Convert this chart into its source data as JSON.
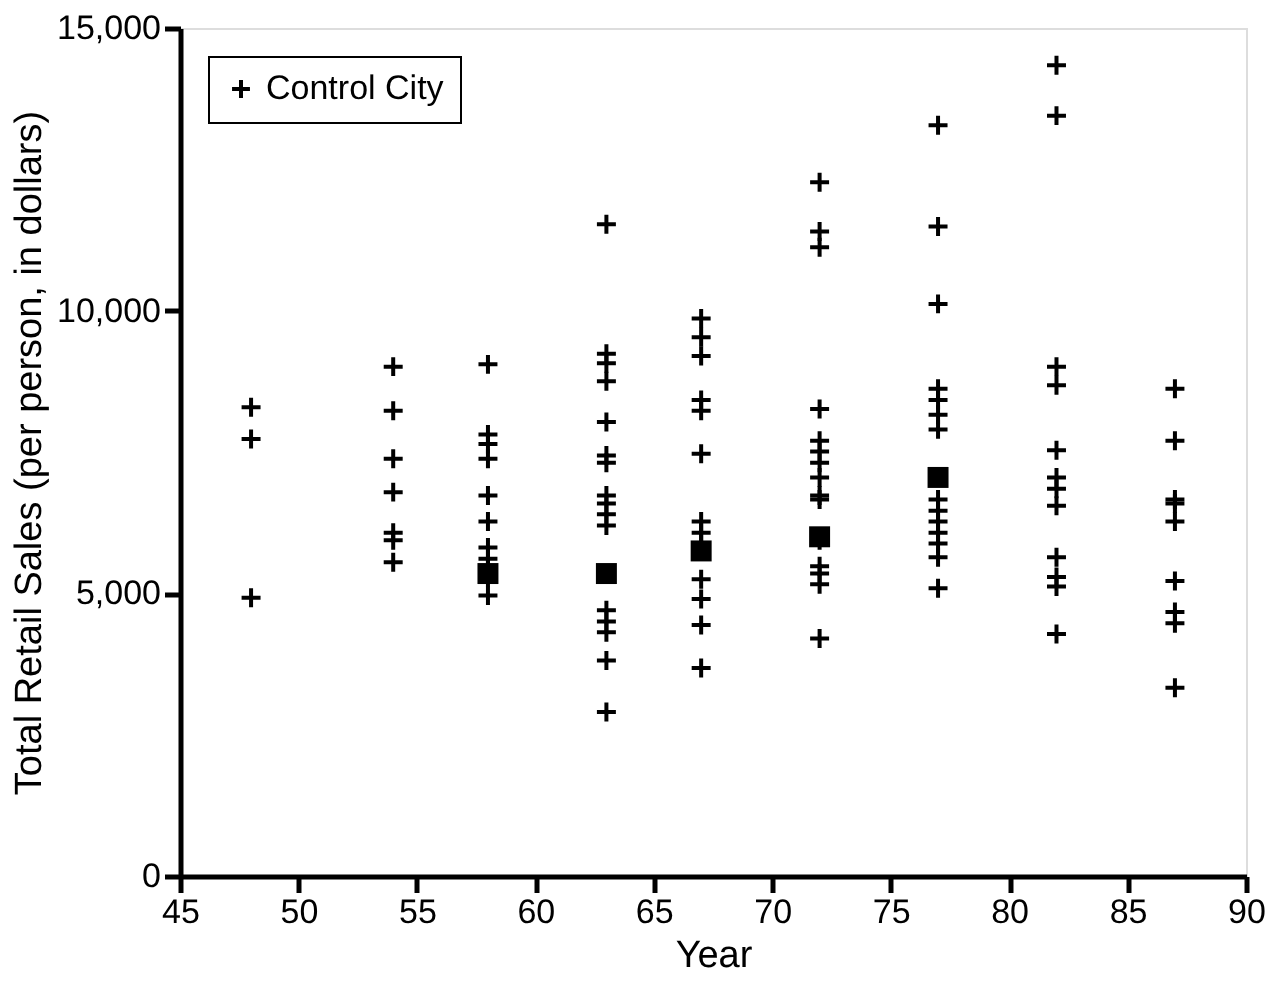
{
  "chart_data": {
    "type": "scatter",
    "xlabel": "Year",
    "ylabel": "Total Retail Sales (per person, in dollars)",
    "xlim": [
      45,
      90
    ],
    "xticks": [
      45,
      50,
      55,
      60,
      65,
      70,
      75,
      80,
      85,
      90
    ],
    "ylim": [
      0,
      15000
    ],
    "yticks": [
      0,
      {
        "value": 5000,
        "label": "5,000"
      },
      {
        "value": 10000,
        "label": "10,000"
      },
      {
        "value": 15000,
        "label": "15,000"
      }
    ],
    "grid": false,
    "legend": "top left",
    "series": [
      {
        "name": "Control City",
        "color": "#000000",
        "marker": "cross",
        "x": [
          48,
          48,
          48,
          54,
          54,
          54,
          54,
          54,
          54,
          54,
          58,
          58,
          58,
          58,
          58,
          58,
          58,
          58,
          58,
          58,
          58,
          63,
          63,
          63,
          63,
          63,
          63,
          63,
          63,
          63,
          63,
          63,
          63,
          63,
          63,
          63,
          63,
          67,
          67,
          67,
          67,
          67,
          67,
          67,
          67,
          67,
          67,
          67,
          67,
          67,
          72,
          72,
          72,
          72,
          72,
          72,
          72,
          72,
          72,
          72,
          72,
          72,
          72,
          72,
          72,
          77,
          77,
          77,
          77,
          77,
          77,
          77,
          77,
          77,
          77,
          77,
          77,
          77,
          77,
          82,
          82,
          82,
          82,
          82,
          82,
          82,
          82,
          82,
          82,
          82,
          82,
          87,
          87,
          87,
          87,
          87,
          87,
          87,
          87,
          87
        ],
        "values": [
          8290,
          7730,
          4920,
          9010,
          8230,
          7380,
          6790,
          6070,
          5940,
          5550,
          9050,
          7810,
          7640,
          7380,
          6730,
          6270,
          5810,
          5610,
          5420,
          5290,
          4960,
          11530,
          9240,
          9070,
          8750,
          8030,
          7440,
          7310,
          6730,
          6590,
          6400,
          6200,
          4700,
          4500,
          4310,
          3810,
          2900,
          9860,
          9530,
          9200,
          8420,
          8230,
          7470,
          6270,
          6070,
          5880,
          5250,
          4900,
          4440,
          3680,
          12270,
          11400,
          11120,
          8260,
          7700,
          7510,
          7310,
          7050,
          6730,
          6660,
          5940,
          5480,
          5350,
          5160,
          4200,
          13280,
          11490,
          10120,
          8620,
          8420,
          8160,
          7900,
          6660,
          6460,
          6270,
          6070,
          5880,
          5640,
          5090,
          14340,
          13450,
          9010,
          8680,
          7530,
          7050,
          6850,
          6550,
          5640,
          5290,
          5120,
          4280,
          8620,
          7700,
          6660,
          6590,
          6270,
          5220,
          4670,
          4470,
          3330
        ]
      },
      {
        "color": "#000000",
        "marker": "square",
        "x": [
          58,
          63,
          67,
          72,
          77
        ],
        "values": [
          5350,
          5350,
          5750,
          6000,
          7050
        ]
      }
    ]
  }
}
